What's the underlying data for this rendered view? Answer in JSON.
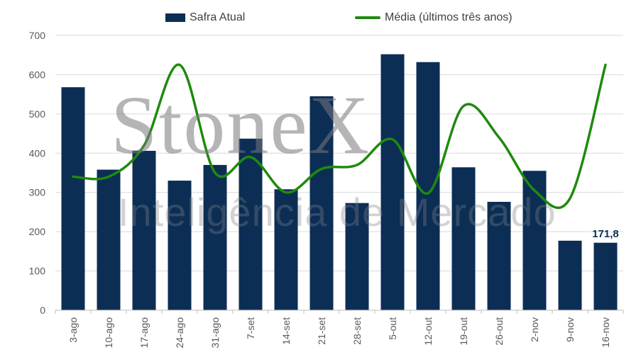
{
  "chart_data": {
    "type": "bar",
    "categories": [
      "3-ago",
      "10-ago",
      "17-ago",
      "24-ago",
      "31-ago",
      "7-set",
      "14-set",
      "21-set",
      "28-set",
      "5-out",
      "12-out",
      "19-out",
      "26-out",
      "2-nov",
      "9-nov",
      "16-nov"
    ],
    "series": [
      {
        "name": "Safra Atual",
        "type": "bar",
        "color": "#0c2e55",
        "values": [
          568,
          358,
          406,
          330,
          370,
          437,
          308,
          545,
          273,
          652,
          632,
          364,
          276,
          355,
          177,
          171.8
        ]
      },
      {
        "name": "Média (últimos três anos)",
        "type": "line",
        "color": "#1f8a0e",
        "values": [
          340,
          340,
          420,
          625,
          350,
          390,
          300,
          360,
          370,
          435,
          298,
          520,
          440,
          305,
          285,
          625
        ]
      }
    ],
    "ylim": [
      0,
      700
    ],
    "yticks": [
      "0",
      "100",
      "200",
      "300",
      "400",
      "500",
      "600",
      "700"
    ],
    "grid": true,
    "legend_position": "top",
    "annotation": {
      "category": "16-nov",
      "text": "171,8"
    }
  },
  "watermark": {
    "brand": "StoneX",
    "tagline": "Inteligência de Mercado"
  }
}
